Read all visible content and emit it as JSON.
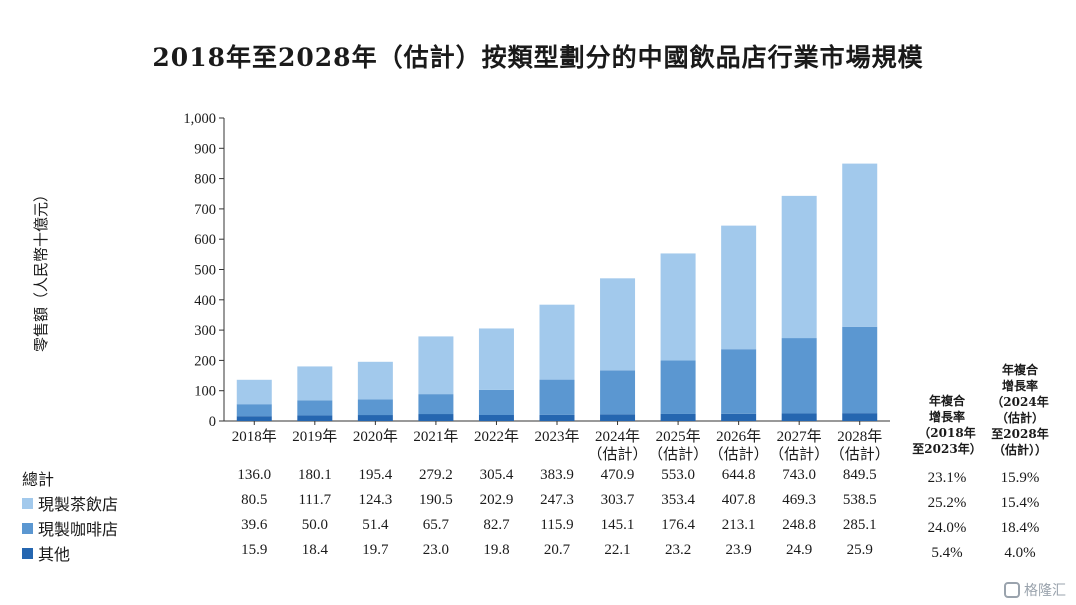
{
  "title": "2018年至2028年（估計）按類型劃分的中國飲品店行業市場規模",
  "watermark": "格隆汇",
  "chart_data": {
    "type": "bar",
    "stacked": true,
    "ylabel": "零售額（人民幣十億元）",
    "ylim": [
      0,
      1000
    ],
    "yticks": [
      "0",
      "100",
      "200",
      "300",
      "400",
      "500",
      "600",
      "700",
      "800",
      "900",
      "1,000"
    ],
    "categories": [
      "2018年",
      "2019年",
      "2020年",
      "2021年",
      "2022年",
      "2023年",
      "2024年\n（估計）",
      "2025年\n（估計）",
      "2026年\n（估計）",
      "2027年\n（估計）",
      "2028年\n（估計）"
    ],
    "category_lines": [
      [
        "2018年",
        ""
      ],
      [
        "2019年",
        ""
      ],
      [
        "2020年",
        ""
      ],
      [
        "2021年",
        ""
      ],
      [
        "2022年",
        ""
      ],
      [
        "2023年",
        ""
      ],
      [
        "2024年",
        "（估計）"
      ],
      [
        "2025年",
        "（估計）"
      ],
      [
        "2026年",
        "（估計）"
      ],
      [
        "2027年",
        "（估計）"
      ],
      [
        "2028年",
        "（估計）"
      ]
    ],
    "series": [
      {
        "name": "其他",
        "color": "#2566b0",
        "values": [
          15.9,
          18.4,
          19.7,
          23.0,
          19.8,
          20.7,
          22.1,
          23.2,
          23.9,
          24.9,
          25.9
        ]
      },
      {
        "name": "現製咖啡店",
        "color": "#5b97d1",
        "values": [
          39.6,
          50.0,
          51.4,
          65.7,
          82.7,
          115.9,
          145.1,
          176.4,
          213.1,
          248.8,
          285.1
        ]
      },
      {
        "name": "現製茶飲店",
        "color": "#a2c9ec",
        "values": [
          80.5,
          111.7,
          124.3,
          190.5,
          202.9,
          247.3,
          303.7,
          353.4,
          407.8,
          469.3,
          538.5
        ]
      }
    ],
    "legend_placement": "bottom-left table",
    "grid": false
  },
  "table": {
    "rows": [
      {
        "label": "總計",
        "swatch": "",
        "values": [
          "136.0",
          "180.1",
          "195.4",
          "279.2",
          "305.4",
          "383.9",
          "470.9",
          "553.0",
          "644.8",
          "743.0",
          "849.5"
        ],
        "cagr1": "23.1%",
        "cagr2": "15.9%"
      },
      {
        "label": "現製茶飲店",
        "swatch": "#a2c9ec",
        "values": [
          "80.5",
          "111.7",
          "124.3",
          "190.5",
          "202.9",
          "247.3",
          "303.7",
          "353.4",
          "407.8",
          "469.3",
          "538.5"
        ],
        "cagr1": "25.2%",
        "cagr2": "15.4%"
      },
      {
        "label": "現製咖啡店",
        "swatch": "#5b97d1",
        "values": [
          "39.6",
          "50.0",
          "51.4",
          "65.7",
          "82.7",
          "115.9",
          "145.1",
          "176.4",
          "213.1",
          "248.8",
          "285.1"
        ],
        "cagr1": "24.0%",
        "cagr2": "18.4%"
      },
      {
        "label": "其他",
        "swatch": "#2566b0",
        "values": [
          "15.9",
          "18.4",
          "19.7",
          "23.0",
          "19.8",
          "20.7",
          "22.1",
          "23.2",
          "23.9",
          "24.9",
          "25.9"
        ],
        "cagr1": "5.4%",
        "cagr2": "4.0%"
      }
    ],
    "cagr_headers": [
      [
        "年複合",
        "增長率",
        "（2018年",
        "至2023年）"
      ],
      [
        "年複合",
        "增長率",
        "（2024年",
        "（估計）",
        "至2028年",
        "（估計））"
      ]
    ]
  }
}
